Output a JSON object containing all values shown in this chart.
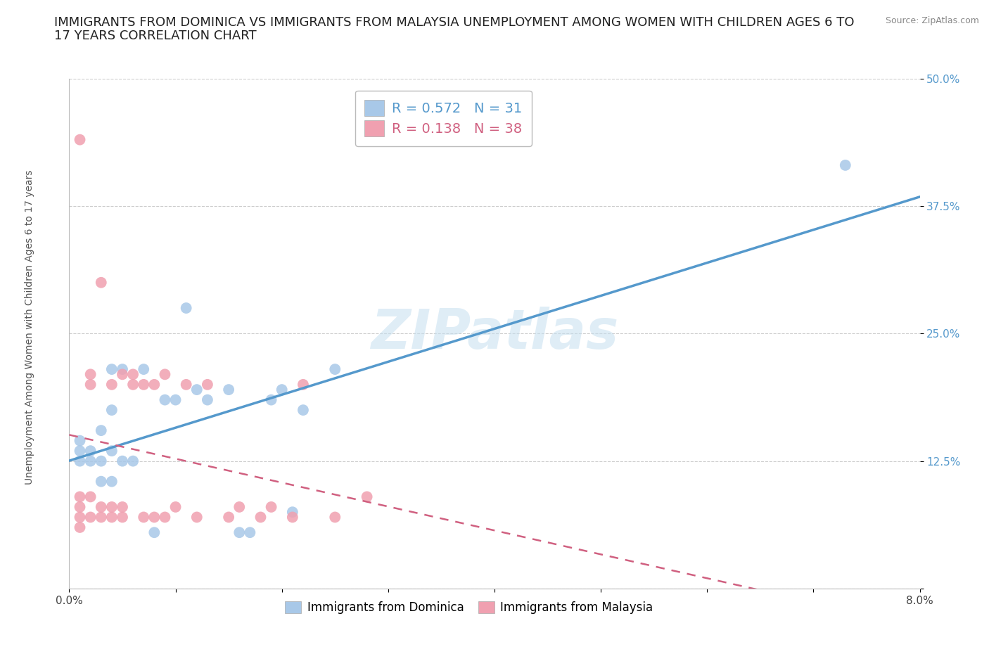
{
  "title_line1": "IMMIGRANTS FROM DOMINICA VS IMMIGRANTS FROM MALAYSIA UNEMPLOYMENT AMONG WOMEN WITH CHILDREN AGES 6 TO",
  "title_line2": "17 YEARS CORRELATION CHART",
  "source_text": "Source: ZipAtlas.com",
  "ylabel": "Unemployment Among Women with Children Ages 6 to 17 years",
  "xlim": [
    0.0,
    0.08
  ],
  "ylim": [
    0.0,
    0.5
  ],
  "xticks": [
    0.0,
    0.01,
    0.02,
    0.03,
    0.04,
    0.05,
    0.06,
    0.07,
    0.08
  ],
  "xticklabels": [
    "0.0%",
    "",
    "",
    "",
    "",
    "",
    "",
    "",
    "8.0%"
  ],
  "yticks": [
    0.0,
    0.125,
    0.25,
    0.375,
    0.5
  ],
  "yticklabels": [
    "",
    "12.5%",
    "25.0%",
    "37.5%",
    "50.0%"
  ],
  "R_dominica": 0.572,
  "N_dominica": 31,
  "R_malaysia": 0.138,
  "N_malaysia": 38,
  "color_dominica": "#a8c8e8",
  "color_dominica_line": "#5599cc",
  "color_malaysia": "#f0a0b0",
  "color_malaysia_line": "#d06080",
  "dominica_x": [
    0.001,
    0.001,
    0.001,
    0.002,
    0.002,
    0.003,
    0.003,
    0.003,
    0.004,
    0.004,
    0.004,
    0.004,
    0.005,
    0.005,
    0.006,
    0.007,
    0.008,
    0.009,
    0.01,
    0.011,
    0.012,
    0.013,
    0.015,
    0.016,
    0.017,
    0.019,
    0.02,
    0.021,
    0.022,
    0.025,
    0.073
  ],
  "dominica_y": [
    0.125,
    0.135,
    0.145,
    0.125,
    0.135,
    0.105,
    0.125,
    0.155,
    0.105,
    0.135,
    0.175,
    0.215,
    0.125,
    0.215,
    0.125,
    0.215,
    0.055,
    0.185,
    0.185,
    0.275,
    0.195,
    0.185,
    0.195,
    0.055,
    0.055,
    0.185,
    0.195,
    0.075,
    0.175,
    0.215,
    0.415
  ],
  "malaysia_x": [
    0.001,
    0.001,
    0.001,
    0.001,
    0.001,
    0.002,
    0.002,
    0.002,
    0.002,
    0.003,
    0.003,
    0.003,
    0.004,
    0.004,
    0.004,
    0.005,
    0.005,
    0.005,
    0.006,
    0.006,
    0.007,
    0.007,
    0.008,
    0.008,
    0.009,
    0.009,
    0.01,
    0.011,
    0.012,
    0.013,
    0.015,
    0.016,
    0.018,
    0.019,
    0.021,
    0.022,
    0.025,
    0.028
  ],
  "malaysia_y": [
    0.06,
    0.07,
    0.08,
    0.09,
    0.44,
    0.07,
    0.09,
    0.2,
    0.21,
    0.07,
    0.08,
    0.3,
    0.07,
    0.08,
    0.2,
    0.07,
    0.08,
    0.21,
    0.2,
    0.21,
    0.07,
    0.2,
    0.07,
    0.2,
    0.07,
    0.21,
    0.08,
    0.2,
    0.07,
    0.2,
    0.07,
    0.08,
    0.07,
    0.08,
    0.07,
    0.2,
    0.07,
    0.09
  ],
  "background_color": "#ffffff",
  "grid_color": "#cccccc",
  "title_fontsize": 13,
  "axis_label_fontsize": 10,
  "tick_fontsize": 11,
  "legend_fontsize": 13
}
